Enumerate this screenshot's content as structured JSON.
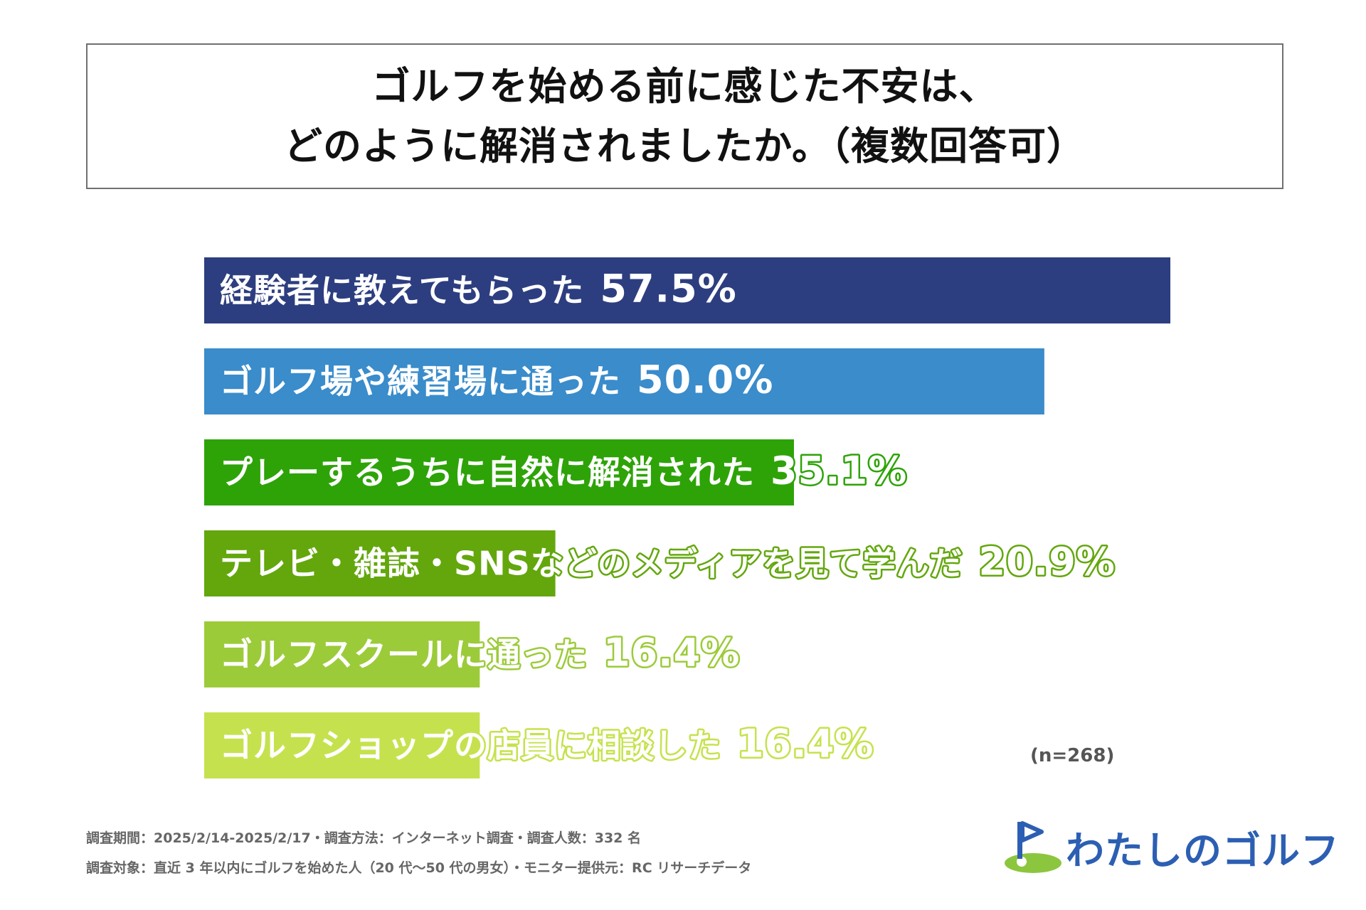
{
  "title": {
    "line1": "ゴルフを始める前に感じた不安は、",
    "line2": "どのように解消されましたか。（複数回答可）"
  },
  "chart_data": {
    "type": "bar",
    "orientation": "horizontal",
    "categories": [
      "経験者に教えてもらった",
      "ゴルフ場や練習場に通った",
      "プレーするうちに自然に解消された",
      "テレビ・雑誌・SNSなどのメディアを見て学んだ",
      "ゴルフスクールに通った",
      "ゴルフショップの店員に相談した"
    ],
    "values": [
      57.5,
      50.0,
      35.1,
      20.9,
      16.4,
      16.4
    ],
    "value_labels": [
      "57.5%",
      "50.0%",
      "35.1%",
      "20.9%",
      "16.4%",
      "16.4%"
    ],
    "colors": [
      "#2d3e80",
      "#3a8ccb",
      "#2ea308",
      "#63a70d",
      "#9ccb3a",
      "#c5e24e"
    ],
    "title": "",
    "xlabel": "",
    "ylabel": "",
    "xlim": [
      0,
      57.5
    ],
    "grid": false,
    "legend": "none"
  },
  "sample_size": "(n=268)",
  "notes": {
    "line1": "調査期間：2025/2/14-2025/2/17・調査方法：インターネット調査・調査人数：332 名",
    "line2": "調査対象：直近 3 年以内にゴルフを始めた人（20 代〜50 代の男女）・モニター提供元：RC リサーチデータ"
  },
  "logo": {
    "text": "わたしのゴルフ",
    "icon": "golf-flag-icon",
    "color": "#2c5fb3",
    "accent": "#8cc63f"
  }
}
